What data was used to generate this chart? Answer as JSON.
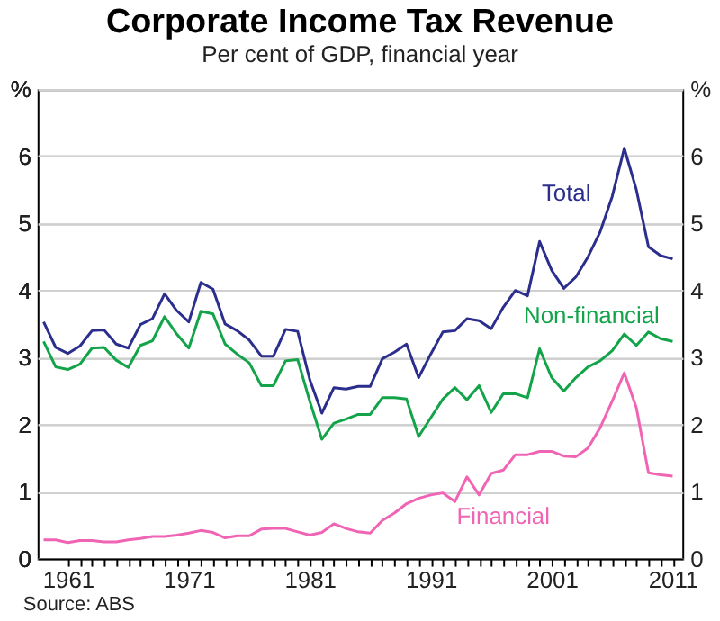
{
  "chart_data": {
    "type": "line",
    "title": "Corporate Income Tax Revenue",
    "subtitle": "Per cent of GDP, financial year",
    "x": [
      1959,
      1960,
      1961,
      1962,
      1963,
      1964,
      1965,
      1966,
      1967,
      1968,
      1969,
      1970,
      1971,
      1972,
      1973,
      1974,
      1975,
      1976,
      1977,
      1978,
      1979,
      1980,
      1981,
      1982,
      1983,
      1984,
      1985,
      1986,
      1987,
      1988,
      1989,
      1990,
      1991,
      1992,
      1993,
      1994,
      1995,
      1996,
      1997,
      1998,
      1999,
      2000,
      2001,
      2002,
      2003,
      2004,
      2005,
      2006,
      2007,
      2008,
      2009,
      2010,
      2011
    ],
    "series": [
      {
        "name": "Total",
        "color": "#2b2e8c",
        "values": [
          3.53,
          3.15,
          3.06,
          3.17,
          3.4,
          3.41,
          3.2,
          3.14,
          3.49,
          3.58,
          3.95,
          3.7,
          3.53,
          4.12,
          4.02,
          3.5,
          3.4,
          3.26,
          3.02,
          3.02,
          3.42,
          3.39,
          2.67,
          2.17,
          2.55,
          2.53,
          2.57,
          2.57,
          2.98,
          3.08,
          3.2,
          2.7,
          3.05,
          3.38,
          3.4,
          3.58,
          3.55,
          3.43,
          3.75,
          4.0,
          3.92,
          4.73,
          4.3,
          4.03,
          4.2,
          4.5,
          4.87,
          5.4,
          6.12,
          5.5,
          4.65,
          4.52,
          4.47
        ]
      },
      {
        "name": "Non-financial",
        "color": "#13a44a",
        "values": [
          3.24,
          2.86,
          2.82,
          2.9,
          3.14,
          3.15,
          2.96,
          2.85,
          3.18,
          3.25,
          3.61,
          3.35,
          3.14,
          3.69,
          3.65,
          3.2,
          3.05,
          2.92,
          2.58,
          2.58,
          2.95,
          2.97,
          2.35,
          1.78,
          2.02,
          2.08,
          2.15,
          2.15,
          2.4,
          2.4,
          2.38,
          1.82,
          2.1,
          2.38,
          2.55,
          2.37,
          2.58,
          2.18,
          2.46,
          2.46,
          2.4,
          3.13,
          2.7,
          2.5,
          2.7,
          2.86,
          2.95,
          3.1,
          3.35,
          3.18,
          3.38,
          3.28,
          3.24
        ]
      },
      {
        "name": "Financial",
        "color": "#f064b4",
        "values": [
          0.28,
          0.28,
          0.24,
          0.27,
          0.27,
          0.25,
          0.25,
          0.28,
          0.3,
          0.33,
          0.33,
          0.35,
          0.38,
          0.42,
          0.39,
          0.31,
          0.34,
          0.34,
          0.44,
          0.45,
          0.45,
          0.4,
          0.35,
          0.39,
          0.52,
          0.45,
          0.4,
          0.38,
          0.57,
          0.68,
          0.82,
          0.9,
          0.95,
          0.98,
          0.85,
          1.22,
          0.95,
          1.27,
          1.32,
          1.55,
          1.55,
          1.6,
          1.6,
          1.53,
          1.52,
          1.65,
          1.95,
          2.35,
          2.77,
          2.25,
          1.28,
          1.25,
          1.23
        ]
      }
    ],
    "xlim": [
      1958.5,
      2011.8
    ],
    "xticks": [
      {
        "value": 1961,
        "label": "1961"
      },
      {
        "value": 1962,
        "label": null
      },
      {
        "value": 1963,
        "label": null
      },
      {
        "value": 1964,
        "label": null
      },
      {
        "value": 1965,
        "label": null
      },
      {
        "value": 1966,
        "label": null
      },
      {
        "value": 1967,
        "label": null
      },
      {
        "value": 1968,
        "label": null
      },
      {
        "value": 1969,
        "label": null
      },
      {
        "value": 1970,
        "label": null
      },
      {
        "value": 1971,
        "label": "1971"
      },
      {
        "value": 1972,
        "label": null
      },
      {
        "value": 1973,
        "label": null
      },
      {
        "value": 1974,
        "label": null
      },
      {
        "value": 1975,
        "label": null
      },
      {
        "value": 1976,
        "label": null
      },
      {
        "value": 1977,
        "label": null
      },
      {
        "value": 1978,
        "label": null
      },
      {
        "value": 1979,
        "label": null
      },
      {
        "value": 1980,
        "label": null
      },
      {
        "value": 1981,
        "label": "1981"
      },
      {
        "value": 1982,
        "label": null
      },
      {
        "value": 1983,
        "label": null
      },
      {
        "value": 1984,
        "label": null
      },
      {
        "value": 1985,
        "label": null
      },
      {
        "value": 1986,
        "label": null
      },
      {
        "value": 1987,
        "label": null
      },
      {
        "value": 1988,
        "label": null
      },
      {
        "value": 1989,
        "label": null
      },
      {
        "value": 1990,
        "label": null
      },
      {
        "value": 1991,
        "label": "1991"
      },
      {
        "value": 1992,
        "label": null
      },
      {
        "value": 1993,
        "label": null
      },
      {
        "value": 1994,
        "label": null
      },
      {
        "value": 1995,
        "label": null
      },
      {
        "value": 1996,
        "label": null
      },
      {
        "value": 1997,
        "label": null
      },
      {
        "value": 1998,
        "label": null
      },
      {
        "value": 1999,
        "label": null
      },
      {
        "value": 2000,
        "label": null
      },
      {
        "value": 2001,
        "label": "2001"
      },
      {
        "value": 2002,
        "label": null
      },
      {
        "value": 2003,
        "label": null
      },
      {
        "value": 2004,
        "label": null
      },
      {
        "value": 2005,
        "label": null
      },
      {
        "value": 2006,
        "label": null
      },
      {
        "value": 2007,
        "label": null
      },
      {
        "value": 2008,
        "label": null
      },
      {
        "value": 2009,
        "label": null
      },
      {
        "value": 2010,
        "label": null
      },
      {
        "value": 2011,
        "label": "2011"
      }
    ],
    "ylim": [
      0,
      7
    ],
    "yticks": [
      0,
      1,
      2,
      3,
      4,
      5,
      6,
      {
        "value": 7,
        "label": "%"
      }
    ],
    "y2lim": [
      0,
      7
    ],
    "y2ticks": [
      0,
      1,
      2,
      3,
      4,
      5,
      6,
      {
        "value": 7,
        "label": "%"
      }
    ],
    "grid": "y",
    "legend": false,
    "marker": "none",
    "line_style": "solid",
    "annotations": [
      "Source: ABS"
    ]
  }
}
